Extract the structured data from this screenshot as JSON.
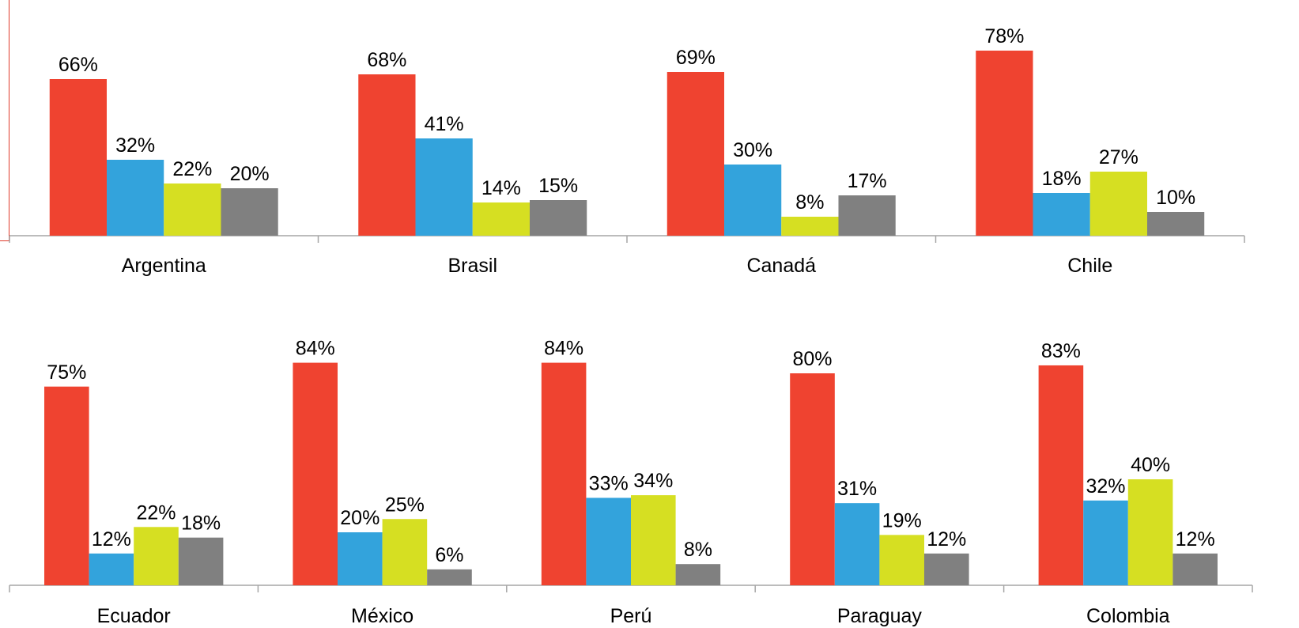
{
  "colors": {
    "series_1": "#EF4330",
    "series_2": "#33A3DC",
    "series_3": "#D6DF22",
    "series_4": "#808080",
    "axis": "#A6A6A6",
    "text": "#000000"
  },
  "chart_data": [
    {
      "type": "bar",
      "categories": [
        "Argentina",
        "Brasil",
        "Canadá",
        "Chile"
      ],
      "series": [
        {
          "values": [
            66,
            68,
            69,
            78
          ],
          "color": "#EF4330"
        },
        {
          "values": [
            32,
            41,
            30,
            18
          ],
          "color": "#33A3DC"
        },
        {
          "values": [
            22,
            14,
            8,
            27
          ],
          "color": "#D6DF22"
        },
        {
          "values": [
            20,
            15,
            17,
            10
          ],
          "color": "#808080"
        }
      ],
      "value_format": "percent",
      "data_labels": true,
      "legend": "none",
      "grid": false,
      "ylim": [
        0,
        100
      ]
    },
    {
      "type": "bar",
      "categories": [
        "Ecuador",
        "México",
        "Perú",
        "Paraguay",
        "Colombia"
      ],
      "series": [
        {
          "values": [
            75,
            84,
            84,
            80,
            83
          ],
          "color": "#EF4330"
        },
        {
          "values": [
            12,
            20,
            33,
            31,
            32
          ],
          "color": "#33A3DC"
        },
        {
          "values": [
            22,
            25,
            34,
            19,
            40
          ],
          "color": "#D6DF22"
        },
        {
          "values": [
            18,
            6,
            8,
            12,
            12
          ],
          "color": "#808080"
        }
      ],
      "value_format": "percent",
      "data_labels": true,
      "legend": "none",
      "grid": false,
      "ylim": [
        0,
        100
      ]
    }
  ]
}
